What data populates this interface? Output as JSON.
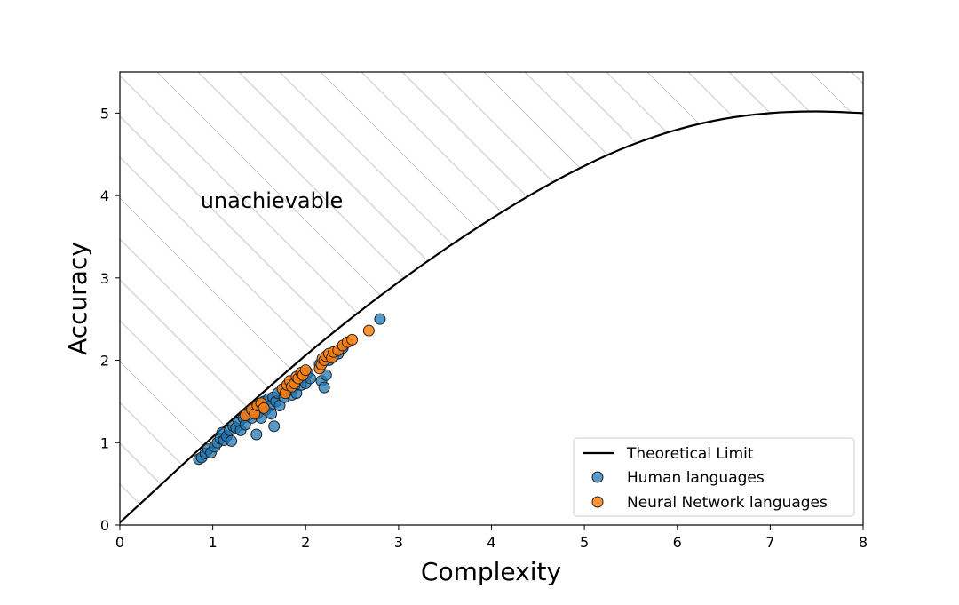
{
  "chart_data": {
    "type": "scatter",
    "title": "",
    "xlabel": "Complexity",
    "ylabel": "Accuracy",
    "xlim": [
      0,
      8
    ],
    "ylim": [
      0,
      5.5
    ],
    "xticks": [
      "0",
      "1",
      "2",
      "3",
      "4",
      "5",
      "6",
      "7",
      "8"
    ],
    "yticks": [
      "0",
      "1",
      "2",
      "3",
      "4",
      "5"
    ],
    "grid": false,
    "legend_position": "bottom-right",
    "annotation": "unachievable",
    "shaded_region": "hatched area above the theoretical limit curve",
    "colors": {
      "limit": "#000000",
      "human": "#1f77b4",
      "neural": "#ff7f0e",
      "hatch": "#c8c8c8"
    },
    "limit_curve": {
      "name": "Theoretical Limit",
      "x": [
        0,
        0.5,
        1,
        1.5,
        2,
        2.5,
        3,
        3.5,
        4,
        4.5,
        5,
        5.5,
        6,
        6.5,
        7,
        7.5,
        8
      ],
      "y": [
        0.03,
        0.55,
        1.07,
        1.57,
        2.06,
        2.52,
        2.95,
        3.35,
        3.72,
        4.06,
        4.36,
        4.61,
        4.8,
        4.93,
        5.0,
        5.02,
        5.0
      ]
    },
    "series": [
      {
        "name": "Human languages",
        "points": [
          [
            0.85,
            0.8
          ],
          [
            0.88,
            0.82
          ],
          [
            0.92,
            0.87
          ],
          [
            0.95,
            0.92
          ],
          [
            0.98,
            0.88
          ],
          [
            1.02,
            0.95
          ],
          [
            1.05,
            1.0
          ],
          [
            1.08,
            1.05
          ],
          [
            1.1,
            1.12
          ],
          [
            1.12,
            1.03
          ],
          [
            1.15,
            1.08
          ],
          [
            1.18,
            1.15
          ],
          [
            1.2,
            1.02
          ],
          [
            1.22,
            1.2
          ],
          [
            1.25,
            1.18
          ],
          [
            1.28,
            1.25
          ],
          [
            1.3,
            1.15
          ],
          [
            1.33,
            1.3
          ],
          [
            1.35,
            1.22
          ],
          [
            1.38,
            1.33
          ],
          [
            1.4,
            1.38
          ],
          [
            1.42,
            1.3
          ],
          [
            1.45,
            1.42
          ],
          [
            1.47,
            1.1
          ],
          [
            1.48,
            1.35
          ],
          [
            1.5,
            1.45
          ],
          [
            1.52,
            1.3
          ],
          [
            1.55,
            1.5
          ],
          [
            1.57,
            1.4
          ],
          [
            1.6,
            1.53
          ],
          [
            1.62,
            1.45
          ],
          [
            1.63,
            1.35
          ],
          [
            1.65,
            1.55
          ],
          [
            1.66,
            1.2
          ],
          [
            1.68,
            1.5
          ],
          [
            1.7,
            1.6
          ],
          [
            1.72,
            1.45
          ],
          [
            1.75,
            1.65
          ],
          [
            1.77,
            1.55
          ],
          [
            1.8,
            1.62
          ],
          [
            1.82,
            1.7
          ],
          [
            1.85,
            1.58
          ],
          [
            1.88,
            1.68
          ],
          [
            1.9,
            1.6
          ],
          [
            1.92,
            1.75
          ],
          [
            1.95,
            1.7
          ],
          [
            1.98,
            1.8
          ],
          [
            2.0,
            1.72
          ],
          [
            2.02,
            1.85
          ],
          [
            2.05,
            1.78
          ],
          [
            2.15,
            1.95
          ],
          [
            2.17,
            1.75
          ],
          [
            2.2,
            1.67
          ],
          [
            2.22,
            1.82
          ],
          [
            2.25,
            2.0
          ],
          [
            2.3,
            2.05
          ],
          [
            2.35,
            2.08
          ],
          [
            2.4,
            2.15
          ],
          [
            2.8,
            2.5
          ]
        ]
      },
      {
        "name": "Neural Network languages",
        "points": [
          [
            1.35,
            1.33
          ],
          [
            1.42,
            1.4
          ],
          [
            1.45,
            1.35
          ],
          [
            1.48,
            1.45
          ],
          [
            1.52,
            1.48
          ],
          [
            1.55,
            1.42
          ],
          [
            1.75,
            1.65
          ],
          [
            1.78,
            1.6
          ],
          [
            1.8,
            1.7
          ],
          [
            1.83,
            1.75
          ],
          [
            1.85,
            1.68
          ],
          [
            1.88,
            1.72
          ],
          [
            1.9,
            1.8
          ],
          [
            1.92,
            1.78
          ],
          [
            1.95,
            1.85
          ],
          [
            1.97,
            1.82
          ],
          [
            2.0,
            1.88
          ],
          [
            2.15,
            1.9
          ],
          [
            2.17,
            1.95
          ],
          [
            2.18,
            2.02
          ],
          [
            2.2,
            2.0
          ],
          [
            2.22,
            2.05
          ],
          [
            2.25,
            2.08
          ],
          [
            2.28,
            2.03
          ],
          [
            2.3,
            2.1
          ],
          [
            2.35,
            2.12
          ],
          [
            2.4,
            2.18
          ],
          [
            2.45,
            2.22
          ],
          [
            2.5,
            2.25
          ],
          [
            2.68,
            2.36
          ]
        ]
      }
    ],
    "legend": [
      "Theoretical Limit",
      "Human languages",
      "Neural Network languages"
    ]
  }
}
